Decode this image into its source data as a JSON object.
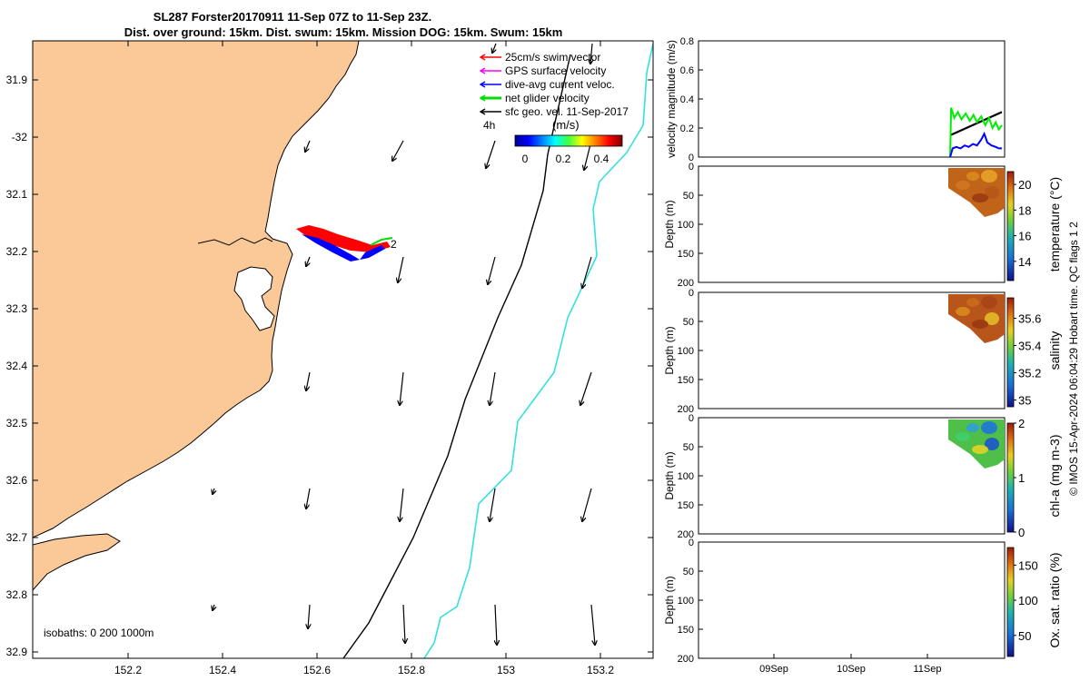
{
  "title_line1": "SL287 Forster20170911 11-Sep 07Z to 11-Sep 23Z.",
  "title_line2": "Dist. over ground: 15km. Dist. swum: 15km. Mission DOG: 15km. Swum: 15km",
  "map": {
    "type": "map",
    "lon_ticks": [
      "152.2",
      "152.4",
      "152.6",
      "152.8",
      "153",
      "153.2"
    ],
    "lat_ticks": [
      "31.9",
      "-32",
      "32.1",
      "32.2",
      "32.3",
      "32.4",
      "32.5",
      "32.6",
      "32.7",
      "32.8",
      "32.9"
    ],
    "lon_range": [
      152.0,
      153.3
    ],
    "lat_range": [
      -31.83,
      -32.92
    ],
    "legend": [
      {
        "label": "25cm/s swim vector",
        "color": "#ff0000"
      },
      {
        "label": "GPS surface velocity",
        "color": "#ff00ff"
      },
      {
        "label": "dive-avg current veloc.",
        "color": "#0000ff"
      },
      {
        "label": "net glider velocity",
        "color": "#00dd00"
      },
      {
        "label": "sfc geo. vel. 11-Sep-2017",
        "color": "#000000"
      }
    ],
    "legend_scale_label": "4h",
    "colorbar_title": "(m/s)",
    "colorbar_ticks": [
      "0",
      "0.2",
      "0.4"
    ],
    "track_end_label": "2",
    "isobaths_label": "isobaths: 0   200  1000m",
    "colors": {
      "land": "#fbc898",
      "isobath_200": "#000000",
      "isobath_1000": "#33e0e0"
    }
  },
  "chart_data": [
    {
      "type": "line",
      "ylabel": "velocity magnitude (m/s)",
      "ylim": [
        0,
        0.8
      ],
      "yticks": [
        "0",
        "0.2",
        "0.4",
        "0.6",
        "0.8"
      ],
      "series": [
        {
          "color": "#000000",
          "x": [
            0.0,
            1.0
          ],
          "y": [
            0.15,
            0.31
          ]
        },
        {
          "color": "#00ee00",
          "x": [
            0.0,
            0.02,
            0.08,
            0.15,
            0.22,
            0.3,
            0.38,
            0.45,
            0.52,
            0.6,
            0.68,
            0.75,
            0.82,
            0.88,
            0.94,
            1.0
          ],
          "y": [
            0.0,
            0.34,
            0.27,
            0.31,
            0.26,
            0.3,
            0.25,
            0.29,
            0.24,
            0.28,
            0.22,
            0.27,
            0.2,
            0.24,
            0.19,
            0.22
          ]
        },
        {
          "color": "#0000ff",
          "x": [
            0.0,
            0.05,
            0.12,
            0.2,
            0.28,
            0.36,
            0.44,
            0.52,
            0.6,
            0.66,
            0.72,
            0.8,
            0.88,
            0.94,
            1.0
          ],
          "y": [
            0.0,
            0.06,
            0.07,
            0.06,
            0.08,
            0.07,
            0.09,
            0.08,
            0.12,
            0.16,
            0.1,
            0.08,
            0.07,
            0.06,
            0.06
          ]
        }
      ]
    },
    {
      "type": "heatmap",
      "ylabel": "Depth (m)",
      "ylim": [
        0,
        200
      ],
      "yticks": [
        "0",
        "50",
        "100",
        "150",
        "200"
      ],
      "colorbar_label": "temperature (°C)",
      "colorbar_ticks": [
        "20",
        "18",
        "16",
        "14"
      ],
      "colorbar_range": [
        12.5,
        21
      ]
    },
    {
      "type": "heatmap",
      "ylabel": "Depth (m)",
      "ylim": [
        0,
        200
      ],
      "yticks": [
        "0",
        "50",
        "100",
        "150",
        "200"
      ],
      "colorbar_label": "salinity",
      "colorbar_ticks": [
        "35.6",
        "35.4",
        "35.2",
        "35"
      ],
      "colorbar_range": [
        34.95,
        35.75
      ]
    },
    {
      "type": "heatmap",
      "ylabel": "Depth (m)",
      "ylim": [
        0,
        200
      ],
      "yticks": [
        "0",
        "50",
        "100",
        "150",
        "200"
      ],
      "colorbar_label": "chl-a (mg m-3)",
      "colorbar_ticks": [
        "2",
        "1",
        "0"
      ],
      "colorbar_range": [
        0,
        2
      ]
    },
    {
      "type": "heatmap",
      "ylabel": "Depth (m)",
      "ylim": [
        0,
        200
      ],
      "yticks": [
        "0",
        "50",
        "100",
        "150",
        "200"
      ],
      "colorbar_label": "Ox. sat. ratio (%)",
      "colorbar_ticks": [
        "150",
        "100",
        "50"
      ],
      "colorbar_range": [
        20,
        175
      ],
      "x_ticks": [
        "09Sep",
        "10Sep",
        "11Sep"
      ]
    }
  ],
  "side_note": "© IMOS 15-Apr-2024 06:04:29 Hobart time. QC flags 1  2"
}
